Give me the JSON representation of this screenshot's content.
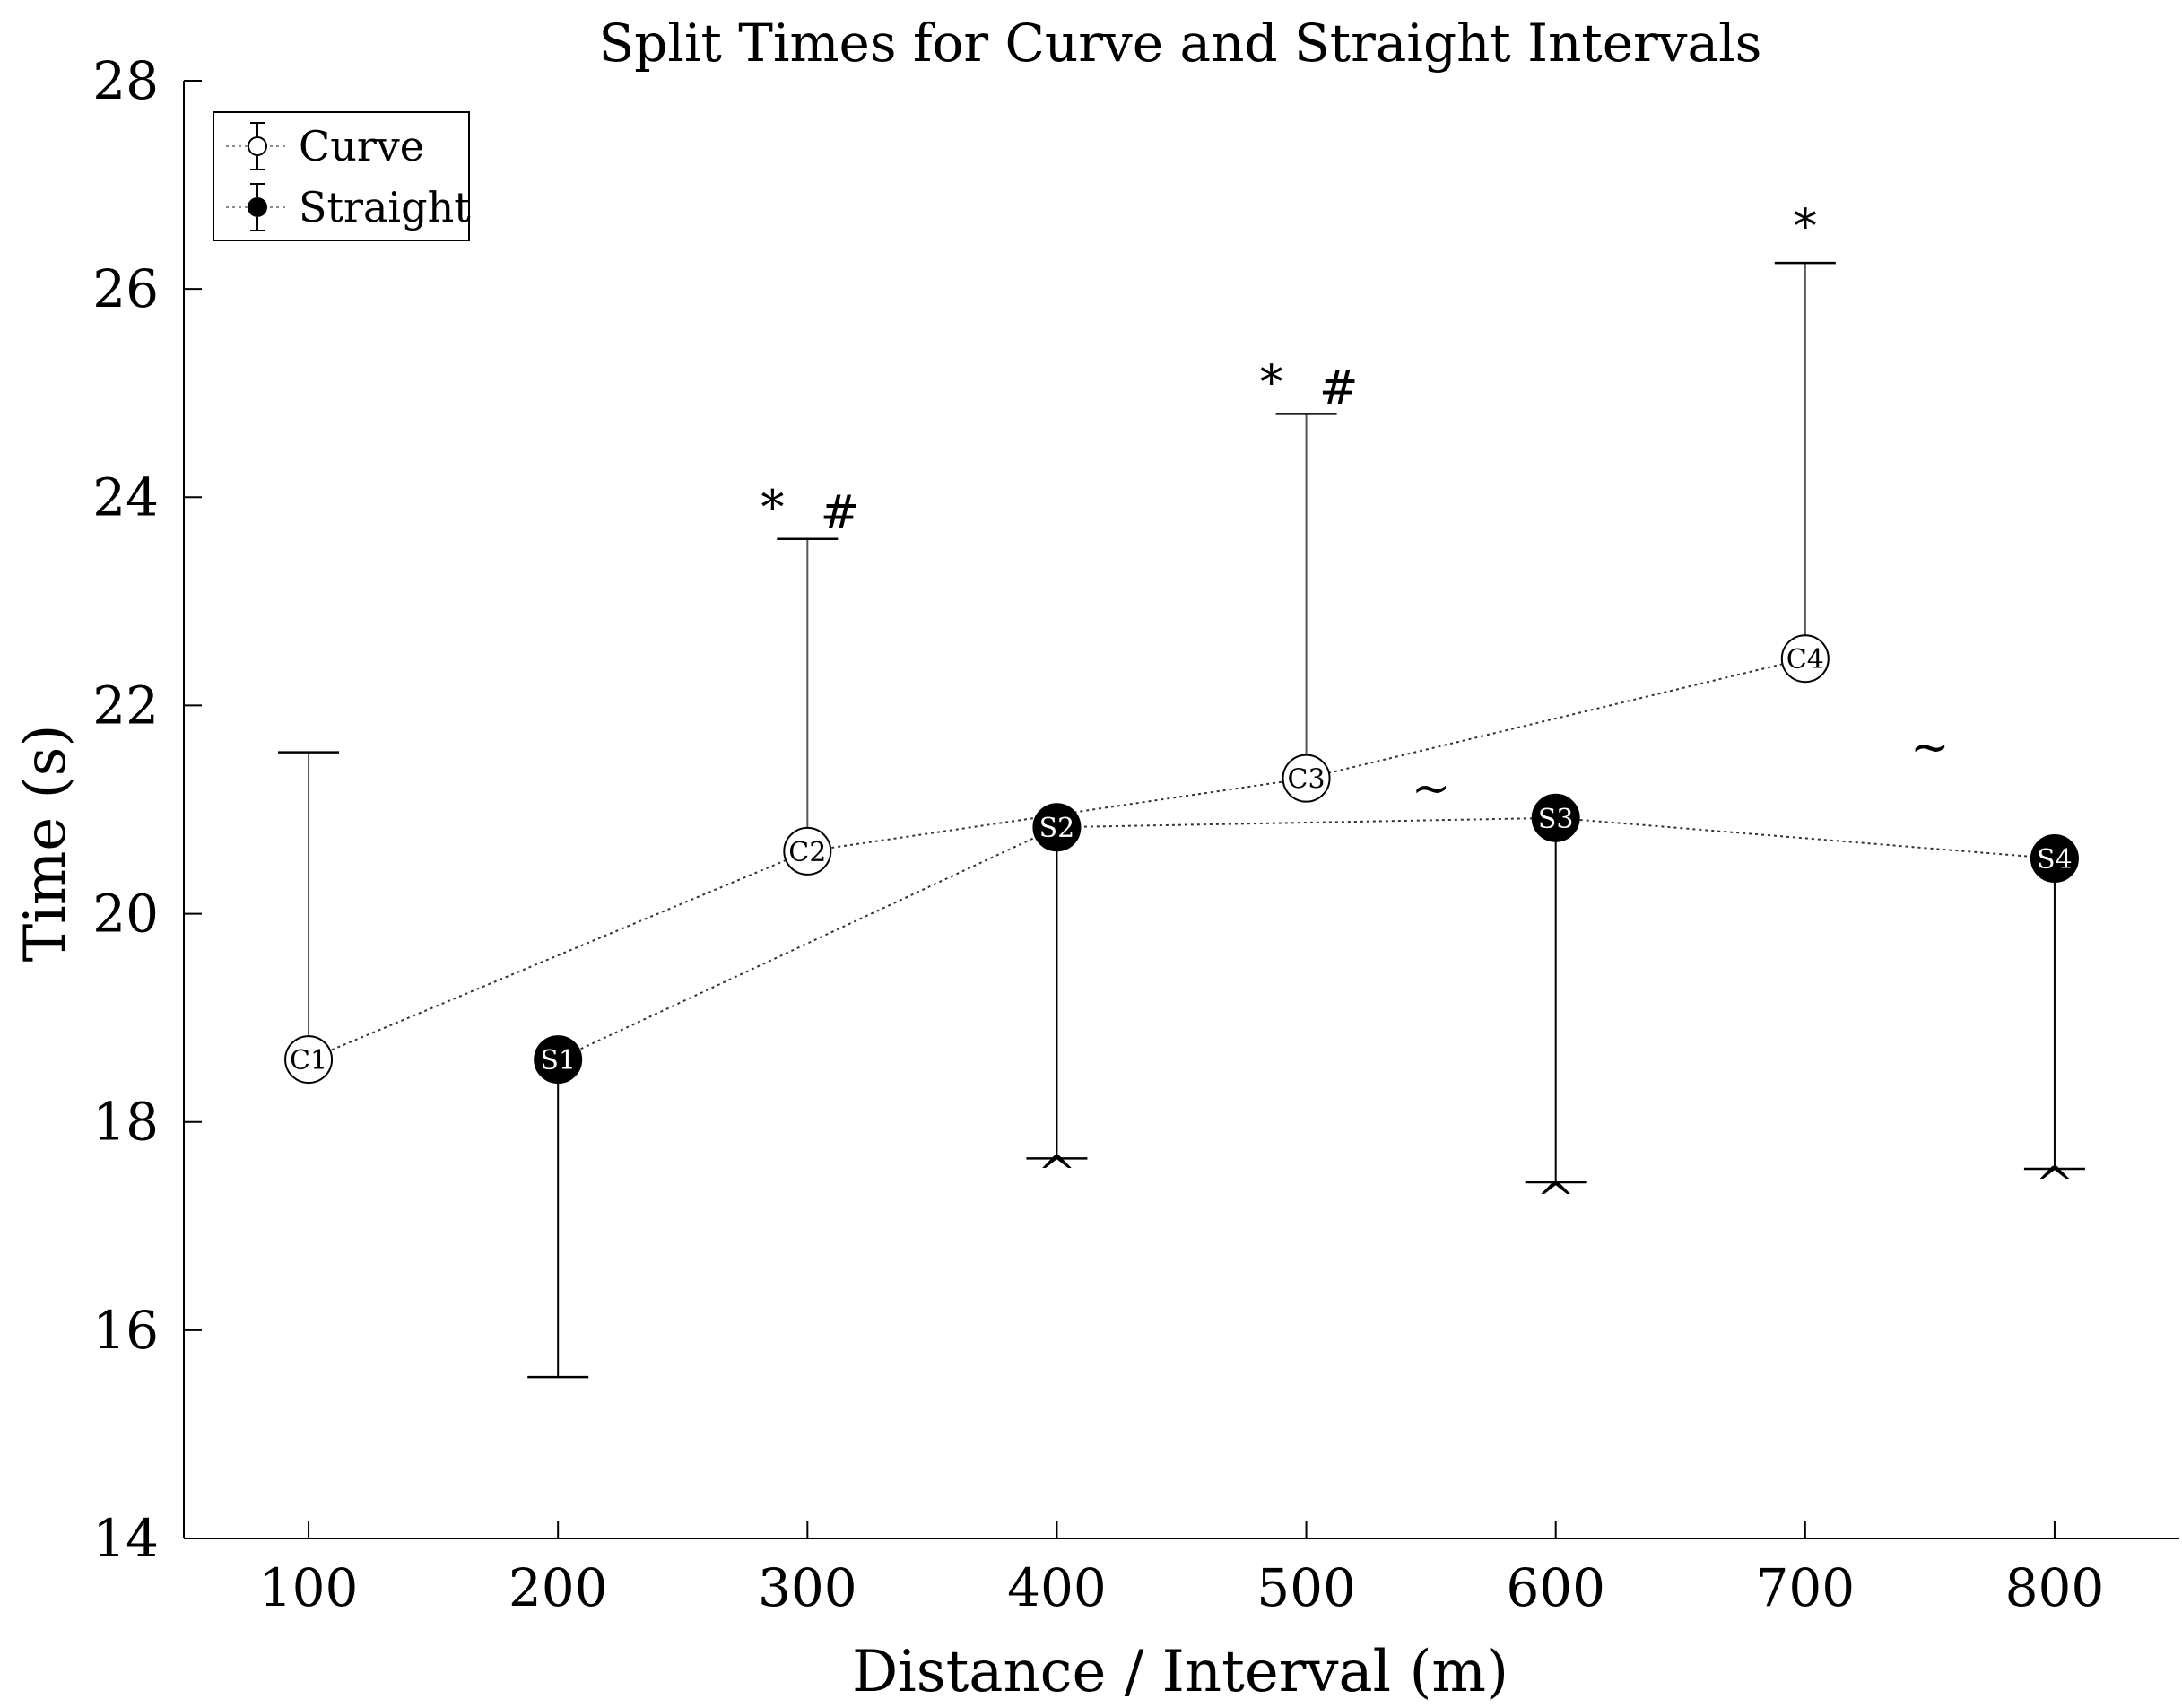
{
  "chart_data": {
    "type": "line",
    "title": "Split Times for Curve and Straight Intervals",
    "xlabel": "Distance / Interval (m)",
    "ylabel": "Time (s)",
    "xlim": [
      50,
      850
    ],
    "ylim": [
      14,
      28
    ],
    "xticks": [
      100,
      200,
      300,
      400,
      500,
      600,
      700,
      800
    ],
    "yticks": [
      14,
      16,
      18,
      20,
      22,
      24,
      26,
      28
    ],
    "grid": false,
    "legend_position": "top-left",
    "series": [
      {
        "name": "Curve",
        "marker": "open-circle",
        "error_direction": "up",
        "points": [
          {
            "label": "C1",
            "x": 100,
            "y": 18.6,
            "error": 2.95
          },
          {
            "label": "C2",
            "x": 300,
            "y": 20.6,
            "error": 3.0
          },
          {
            "label": "C3",
            "x": 500,
            "y": 21.3,
            "error": 3.5
          },
          {
            "label": "C4",
            "x": 700,
            "y": 22.45,
            "error": 3.8
          }
        ]
      },
      {
        "name": "Straight",
        "marker": "filled-circle",
        "error_direction": "down",
        "points": [
          {
            "label": "S1",
            "x": 200,
            "y": 18.6,
            "error": 3.05
          },
          {
            "label": "S2",
            "x": 400,
            "y": 20.83,
            "error": 3.18
          },
          {
            "label": "S3",
            "x": 600,
            "y": 20.92,
            "error": 3.5
          },
          {
            "label": "S4",
            "x": 800,
            "y": 20.53,
            "error": 2.98
          }
        ]
      }
    ],
    "annotations": [
      {
        "text": "*",
        "x": 286,
        "y": 23.75
      },
      {
        "text": "#",
        "x": 313,
        "y": 23.7
      },
      {
        "text": "*",
        "x": 486,
        "y": 24.95
      },
      {
        "text": "#",
        "x": 513,
        "y": 24.9
      },
      {
        "text": "*",
        "x": 700,
        "y": 26.45
      },
      {
        "text": "~",
        "x": 550,
        "y": 21.05
      },
      {
        "text": "~",
        "x": 750,
        "y": 21.45
      },
      {
        "text": "^",
        "x": 400,
        "y": 17.35
      },
      {
        "text": "^",
        "x": 600,
        "y": 17.1
      },
      {
        "text": "^",
        "x": 800,
        "y": 17.25
      }
    ]
  }
}
